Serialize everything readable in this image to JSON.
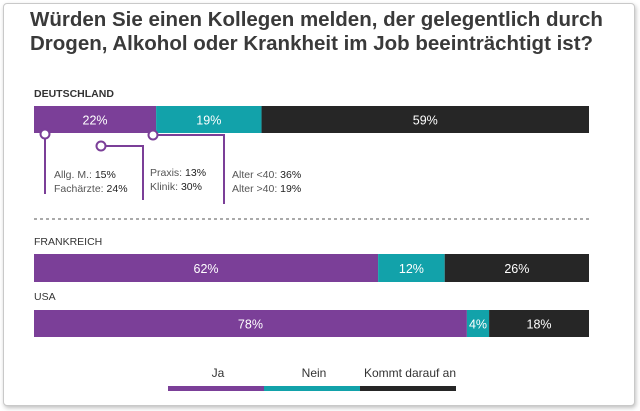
{
  "title_line1": "Würden Sie einen Kollegen melden, der gelegentlich durch",
  "title_line2": "Drogen, Alkohol oder Krankheit im Job beeinträchtigt ist?",
  "colors": {
    "ja": "#7b3f98",
    "nein": "#12a2aa",
    "kommt": "#262626",
    "text": "#333333"
  },
  "chart_data": {
    "type": "bar",
    "orientation": "horizontal-stacked-100",
    "categories": [
      "DEUTSCHLAND",
      "FRANKREICH",
      "USA"
    ],
    "series": [
      {
        "name": "Ja",
        "values": [
          22,
          62,
          78
        ],
        "labels": [
          "22%",
          "62%",
          "78%"
        ]
      },
      {
        "name": "Nein",
        "values": [
          19,
          12,
          4
        ],
        "labels": [
          "19%",
          "12%",
          "4%"
        ]
      },
      {
        "name": "Kommt darauf an",
        "values": [
          59,
          26,
          18
        ],
        "labels": [
          "59%",
          "26%",
          "18%"
        ]
      }
    ],
    "annotations": [
      {
        "name": "allg",
        "lines": [
          [
            "Allg. M.:",
            "15%"
          ],
          [
            "Fachärzte:",
            "24%"
          ]
        ]
      },
      {
        "name": "praxis",
        "lines": [
          [
            "Praxis:",
            "13%"
          ],
          [
            "Klinik:",
            "30%"
          ]
        ]
      },
      {
        "name": "alter",
        "lines": [
          [
            "Alter <40:",
            "36%"
          ],
          [
            "Alter >40:",
            "19%"
          ]
        ]
      }
    ],
    "legend": [
      "Ja",
      "Nein",
      "Kommt darauf an"
    ]
  }
}
